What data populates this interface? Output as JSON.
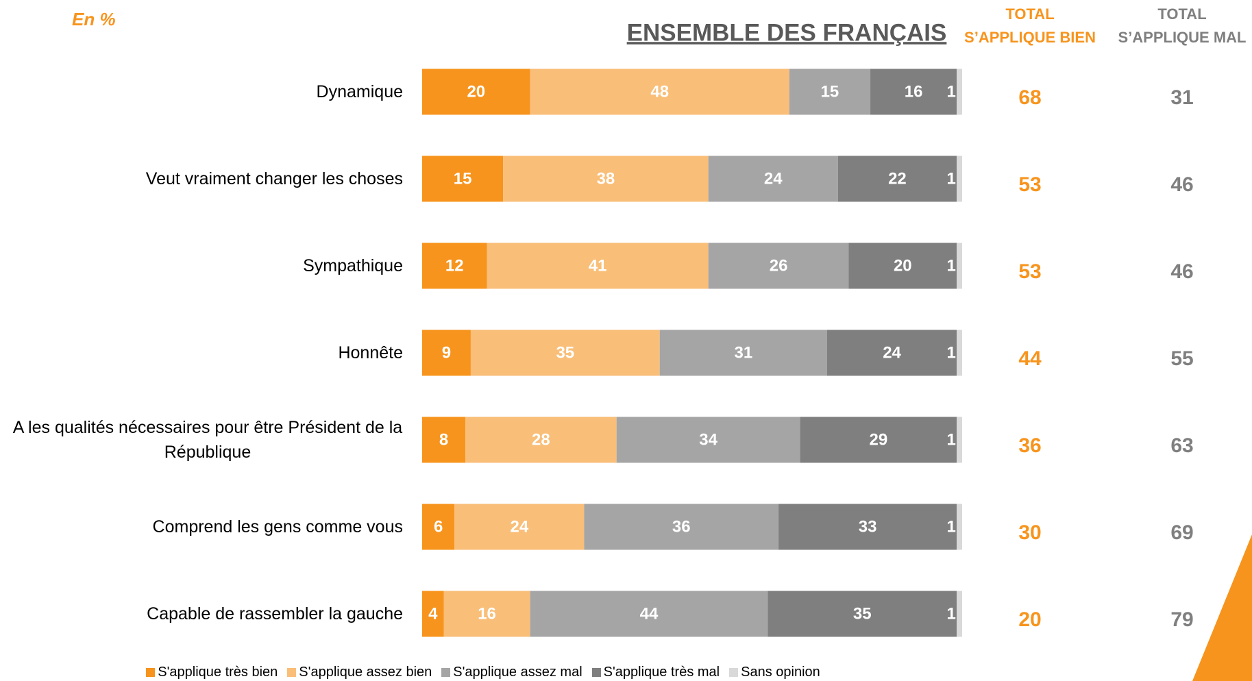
{
  "chart_data": {
    "type": "stacked-bar-horizontal",
    "title": "ENSEMBLE DES FRANÇAIS",
    "unit_note": "En %",
    "categories": [
      "Dynamique",
      "Veut vraiment changer les choses",
      "Sympathique",
      "Honnête",
      "A les qualités nécessaires pour être Président de la République",
      "Comprend les gens comme vous",
      "Capable de rassembler la gauche"
    ],
    "xlim": [
      0,
      100
    ],
    "series": [
      {
        "name": "S'applique très bien",
        "color": "#F7941D",
        "values": [
          20,
          15,
          12,
          9,
          8,
          6,
          4
        ]
      },
      {
        "name": "S'applique assez bien",
        "color": "#F9BE78",
        "values": [
          48,
          38,
          41,
          35,
          28,
          24,
          16
        ]
      },
      {
        "name": "S'applique assez mal",
        "color": "#A5A5A5",
        "values": [
          15,
          24,
          26,
          31,
          34,
          36,
          44
        ]
      },
      {
        "name": "S'applique très mal",
        "color": "#7F7F7F",
        "values": [
          16,
          22,
          20,
          24,
          29,
          33,
          35
        ]
      },
      {
        "name": "Sans opinion",
        "color": "#D9D9D9",
        "values": [
          1,
          1,
          1,
          1,
          1,
          1,
          1
        ]
      }
    ],
    "totals": [
      {
        "label": [
          "TOTAL",
          "S’APPLIQUE BIEN"
        ],
        "color": "#F7941D",
        "values": [
          68,
          53,
          53,
          44,
          36,
          30,
          20
        ]
      },
      {
        "label": [
          "TOTAL",
          "S’APPLIQUE MAL"
        ],
        "color": "#7F7F7F",
        "values": [
          31,
          46,
          46,
          55,
          63,
          69,
          79
        ]
      }
    ]
  }
}
